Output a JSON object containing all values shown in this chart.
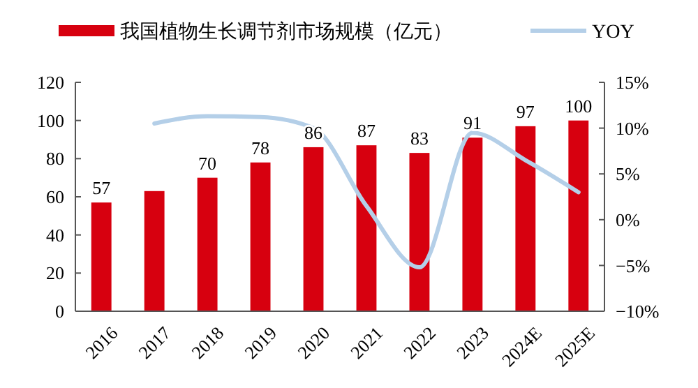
{
  "chart_data": {
    "type": "bar",
    "categories": [
      "2016",
      "2017",
      "2018",
      "2019",
      "2020",
      "2021",
      "2022",
      "2023",
      "2024E",
      "2025E"
    ],
    "series": [
      {
        "name": "我国植物生长调节剂市场规模（亿元）",
        "color": "#d7000f",
        "values": [
          57,
          63,
          70,
          78,
          86,
          87,
          83,
          91,
          97,
          100
        ],
        "value_labels": [
          "57",
          null,
          "70",
          "78",
          "86",
          "87",
          "83",
          "91",
          "97",
          "100"
        ]
      },
      {
        "name": "YOY",
        "type": "line",
        "axis": "y2",
        "color": "#b4cfe8",
        "values": [
          null,
          10.5,
          11.3,
          11.2,
          10.0,
          1.5,
          -5.2,
          9.5,
          6.5,
          3.0
        ]
      }
    ],
    "ylim": [
      0,
      120
    ],
    "yticks": [
      0,
      20,
      40,
      60,
      80,
      100,
      120
    ],
    "y2lim": [
      -10,
      15
    ],
    "y2ticks": [
      {
        "value": -10,
        "label": "−10%"
      },
      {
        "value": -5,
        "label": "−5%"
      },
      {
        "value": 0,
        "label": "0%"
      },
      {
        "value": 5,
        "label": "5%"
      },
      {
        "value": 10,
        "label": "10%"
      },
      {
        "value": 15,
        "label": "15%"
      }
    ],
    "legend": "top",
    "grid": false,
    "marker": "none",
    "line_style": "solid"
  }
}
